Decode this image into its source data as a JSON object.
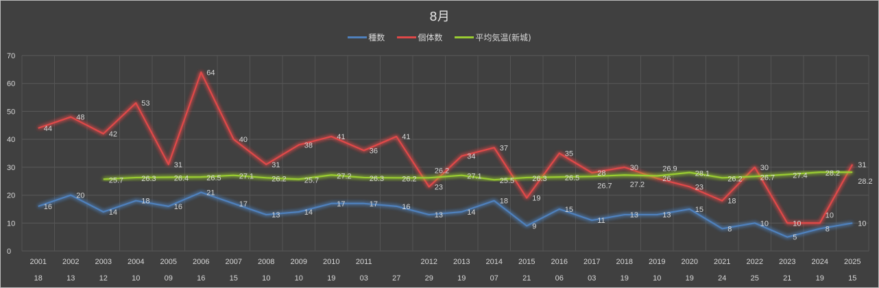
{
  "chart_data": {
    "type": "line",
    "title": "8月",
    "legend_placement": "top",
    "years": [
      "2001",
      "2002",
      "2003",
      "2004",
      "2005",
      "2006",
      "2007",
      "2008",
      "2009",
      "2010",
      "2011",
      "",
      "2012",
      "2013",
      "2014",
      "2015",
      "2016",
      "2017",
      "2018",
      "2019",
      "2020",
      "2021",
      "2022",
      "2023",
      "2024",
      "2025"
    ],
    "days": [
      "18",
      "13",
      "12",
      "10",
      "09",
      "16",
      "15",
      "10",
      "10",
      "19",
      "03",
      "27",
      "29",
      "19",
      "07",
      "21",
      "06",
      "03",
      "19",
      "10",
      "19",
      "24",
      "25",
      "21",
      "19",
      "15"
    ],
    "ylim": [
      0,
      70
    ],
    "yticks": [
      0,
      10,
      20,
      30,
      40,
      50,
      60,
      70
    ],
    "grid": true,
    "series": [
      {
        "name": "種数",
        "color": "#4f81bd",
        "values": [
          16,
          20,
          14,
          18,
          16,
          21,
          17,
          13,
          14,
          17,
          17,
          16,
          13,
          14,
          18,
          9,
          15,
          11,
          13,
          13,
          15,
          8,
          10,
          5,
          8,
          10
        ]
      },
      {
        "name": "個体数",
        "color": "#e04848",
        "values": [
          44,
          48,
          42,
          53,
          31,
          64,
          40,
          31,
          38,
          41,
          36,
          41,
          23,
          34,
          37,
          19,
          35,
          28,
          30,
          26,
          23,
          18,
          30,
          10,
          10,
          31
        ]
      },
      {
        "name": "平均気温(新城)",
        "color": "#9acd32",
        "values": [
          null,
          null,
          25.7,
          26.3,
          26.4,
          26.5,
          27.1,
          26.2,
          25.7,
          27.2,
          26.3,
          26.2,
          26.2,
          27.1,
          25.5,
          26.3,
          26.5,
          26.7,
          27.2,
          26.9,
          28.1,
          26.2,
          26.7,
          27.4,
          28.2,
          28.2
        ]
      }
    ]
  }
}
